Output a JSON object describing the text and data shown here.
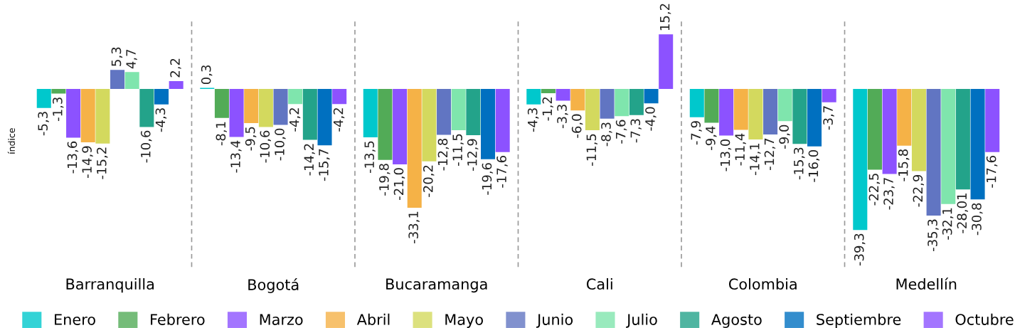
{
  "chart_data": {
    "type": "bar",
    "ylabel": "índice",
    "categories": [
      "Barranquilla",
      "Bogotá",
      "Bucaramanga",
      "Cali",
      "Colombia",
      "Medellín"
    ],
    "legend": "bottom",
    "grid": false,
    "series": [
      {
        "name": "Enero",
        "color": "#00c8cc",
        "values": [
          -5.3,
          0.3,
          -13.5,
          -4.3,
          -7.9,
          -39.3
        ],
        "value_labels": [
          "-5,3",
          "0,3",
          "-13,5",
          "-4,3",
          "-7,9",
          "-39,3"
        ]
      },
      {
        "name": "Febrero",
        "color": "#52ab57",
        "values": [
          -1.3,
          -8.1,
          -19.8,
          -1.2,
          -9.4,
          -22.5
        ],
        "value_labels": [
          "-1,3",
          "-8,1",
          "-19,8",
          "-1,2",
          "-9,4",
          "-22,5"
        ]
      },
      {
        "name": "Marzo",
        "color": "#8c52ff",
        "values": [
          -13.6,
          -13.4,
          -21.0,
          -3.3,
          -13.0,
          -23.7
        ],
        "value_labels": [
          "-13,6",
          "-13,4",
          "-21,0",
          "-3,3",
          "-13,0",
          "-23,7"
        ]
      },
      {
        "name": "Abril",
        "color": "#f5b247",
        "values": [
          -14.9,
          -9.5,
          -33.1,
          -6.0,
          -11.4,
          -15.8
        ],
        "value_labels": [
          "-14,9",
          "-9,5",
          "-33,1",
          "-6,0",
          "-11,4",
          "-15,8"
        ]
      },
      {
        "name": "Mayo",
        "color": "#d3d95e",
        "values": [
          -15.2,
          -10.6,
          -20.2,
          -11.5,
          -14.1,
          -22.9
        ],
        "value_labels": [
          "-15,2",
          "-10,6",
          "-20,2",
          "-11,5",
          "-14,1",
          "-22,9"
        ]
      },
      {
        "name": "Junio",
        "color": "#6175c2",
        "values": [
          5.3,
          -10.0,
          -12.8,
          -8.3,
          -12.7,
          -35.3
        ],
        "value_labels": [
          "5,3",
          "-10,0",
          "-12,8",
          "-8,3",
          "-12,7",
          "-35,3"
        ]
      },
      {
        "name": "Julio",
        "color": "#7fe5ad",
        "values": [
          4.7,
          -4.2,
          -11.5,
          -7.6,
          -9.0,
          -32.1
        ],
        "value_labels": [
          "4,7",
          "-4,2",
          "-11,5",
          "-7,6",
          "-9,0",
          "-32,1"
        ]
      },
      {
        "name": "Agosto",
        "color": "#23a38a",
        "values": [
          -10.6,
          -14.2,
          -12.9,
          -7.3,
          -15.3,
          -28.01
        ],
        "value_labels": [
          "-10,6",
          "-14,2",
          "-12,9",
          "-7,3",
          "-15,3",
          "-28,01"
        ]
      },
      {
        "name": "Septiembre",
        "color": "#0070c0",
        "values": [
          -4.3,
          -15.7,
          -19.6,
          -4.0,
          -16.0,
          -30.8
        ],
        "value_labels": [
          "-4,3",
          "-15,7",
          "-19,6",
          "-4,0",
          "-16,0",
          "-30,8"
        ]
      },
      {
        "name": "Octubre",
        "color": "#8c52ff",
        "values": [
          2.2,
          -4.2,
          -17.6,
          15.2,
          -3.7,
          -17.6
        ],
        "value_labels": [
          "2,2",
          "-4,2",
          "-17,6",
          "15,2",
          "-3,7",
          "-17,6"
        ]
      }
    ]
  }
}
